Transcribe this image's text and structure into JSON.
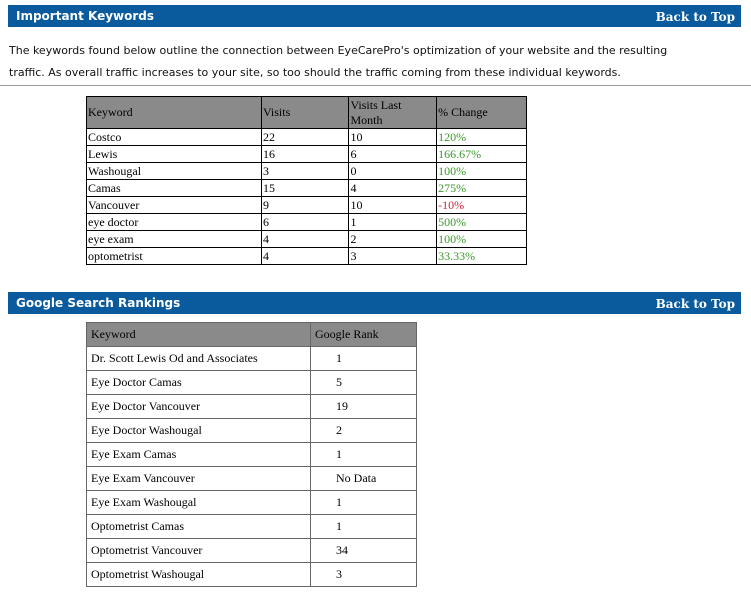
{
  "section1": {
    "title": "Important Keywords",
    "back_link": "Back to Top",
    "intro_line1": "The keywords found below outline the connection between EyeCarePro's optimization of your website and the resulting",
    "intro_line2": "traffic. As overall traffic increases to your site, so too should the traffic coming from these individual keywords."
  },
  "keywords_table": {
    "headers": [
      "Keyword",
      "Visits",
      "Visits Last Month",
      "% Change"
    ],
    "rows": [
      {
        "keyword": "Costco",
        "visits": "22",
        "last": "10",
        "change": "120%",
        "trend": "pos"
      },
      {
        "keyword": "Lewis",
        "visits": "16",
        "last": "6",
        "change": "166.67%",
        "trend": "pos"
      },
      {
        "keyword": "Washougal",
        "visits": "3",
        "last": "0",
        "change": "100%",
        "trend": "pos"
      },
      {
        "keyword": "Camas",
        "visits": "15",
        "last": "4",
        "change": "275%",
        "trend": "pos"
      },
      {
        "keyword": "Vancouver",
        "visits": "9",
        "last": "10",
        "change": "-10%",
        "trend": "neg"
      },
      {
        "keyword": "eye doctor",
        "visits": "6",
        "last": "1",
        "change": "500%",
        "trend": "pos"
      },
      {
        "keyword": "eye exam",
        "visits": "4",
        "last": "2",
        "change": "100%",
        "trend": "pos"
      },
      {
        "keyword": "optometrist",
        "visits": "4",
        "last": "3",
        "change": "33.33%",
        "trend": "pos"
      }
    ]
  },
  "section2": {
    "title": "Google Search Rankings",
    "back_link": "Back to Top"
  },
  "rank_table": {
    "headers": [
      "Keyword",
      "Google Rank"
    ],
    "rows": [
      {
        "keyword": "Dr. Scott Lewis Od and Associates",
        "rank": "1"
      },
      {
        "keyword": "Eye Doctor Camas",
        "rank": "5"
      },
      {
        "keyword": "Eye Doctor Vancouver",
        "rank": "19"
      },
      {
        "keyword": "Eye Doctor Washougal",
        "rank": "2"
      },
      {
        "keyword": "Eye Exam Camas",
        "rank": "1"
      },
      {
        "keyword": "Eye Exam Vancouver",
        "rank": "No Data"
      },
      {
        "keyword": "Eye Exam Washougal",
        "rank": "1"
      },
      {
        "keyword": "Optometrist Camas",
        "rank": "1"
      },
      {
        "keyword": "Optometrist Vancouver",
        "rank": "34"
      },
      {
        "keyword": "Optometrist Washougal",
        "rank": "3"
      }
    ]
  },
  "colors": {
    "header_bar": "#0a5a9e",
    "table_header": "#8a8a8a",
    "positive_change": "#3a9a2a",
    "negative_change": "#d0243a"
  }
}
